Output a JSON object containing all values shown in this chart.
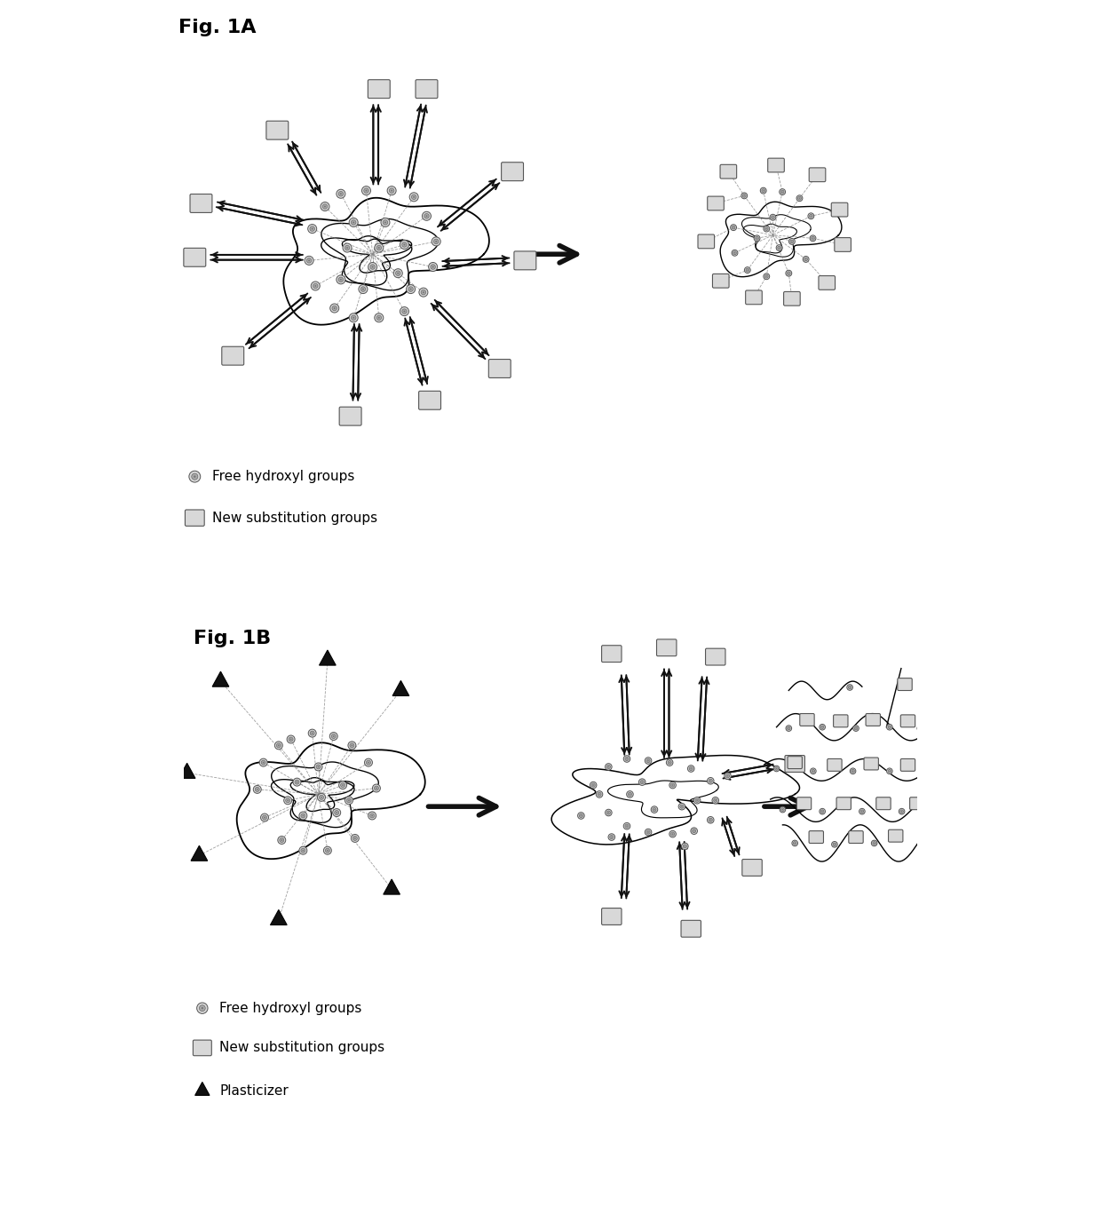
{
  "fig_title_A": "Fig. 1A",
  "fig_title_B": "Fig. 1B",
  "bg_color": "#ffffff",
  "legend_A": [
    "Free hydroxyl groups",
    "New substitution groups"
  ],
  "legend_B": [
    "Free hydroxyl groups",
    "New substitution groups",
    "Plasticizer"
  ],
  "font_size_title": 16,
  "font_size_legend": 11
}
